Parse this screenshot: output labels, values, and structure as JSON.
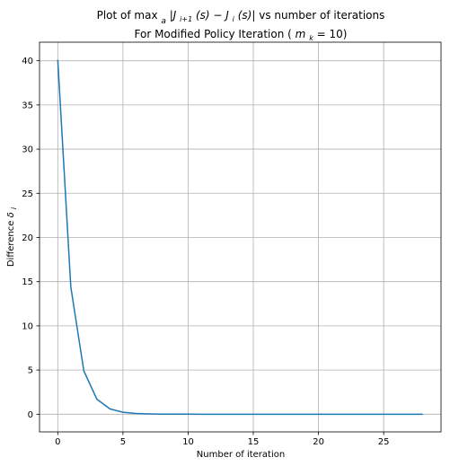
{
  "chart_data": {
    "type": "line",
    "title_line1": "Plot of max_a|J_{i+1}(s) − J_i(s)| vs number of iterations",
    "title_line2": "For Modified Policy Iteration (m_k = 10)",
    "xlabel": "Number of iteration",
    "ylabel": "Difference δ_i",
    "xlim": [
      -1.4,
      29.4
    ],
    "ylim": [
      -2.0,
      42.1
    ],
    "xticks": [
      0,
      5,
      10,
      15,
      20,
      25
    ],
    "yticks": [
      0,
      5,
      10,
      15,
      20,
      25,
      30,
      35,
      40
    ],
    "grid": true,
    "line_color": "#1f77b4",
    "series": [
      {
        "x": [
          0,
          1,
          2,
          3,
          4,
          5,
          6,
          7,
          8,
          9,
          10,
          11,
          12,
          13,
          14,
          15,
          16,
          17,
          18,
          19,
          20,
          21,
          22,
          23,
          24,
          25,
          26,
          27,
          28
        ],
        "values": [
          40.1,
          14.4,
          4.9,
          1.7,
          0.6,
          0.22,
          0.08,
          0.03,
          0.01,
          0.004,
          0.001,
          0,
          0,
          0,
          0,
          0,
          0,
          0,
          0,
          0,
          0,
          0,
          0,
          0,
          0,
          0,
          0,
          0,
          0
        ]
      }
    ]
  }
}
